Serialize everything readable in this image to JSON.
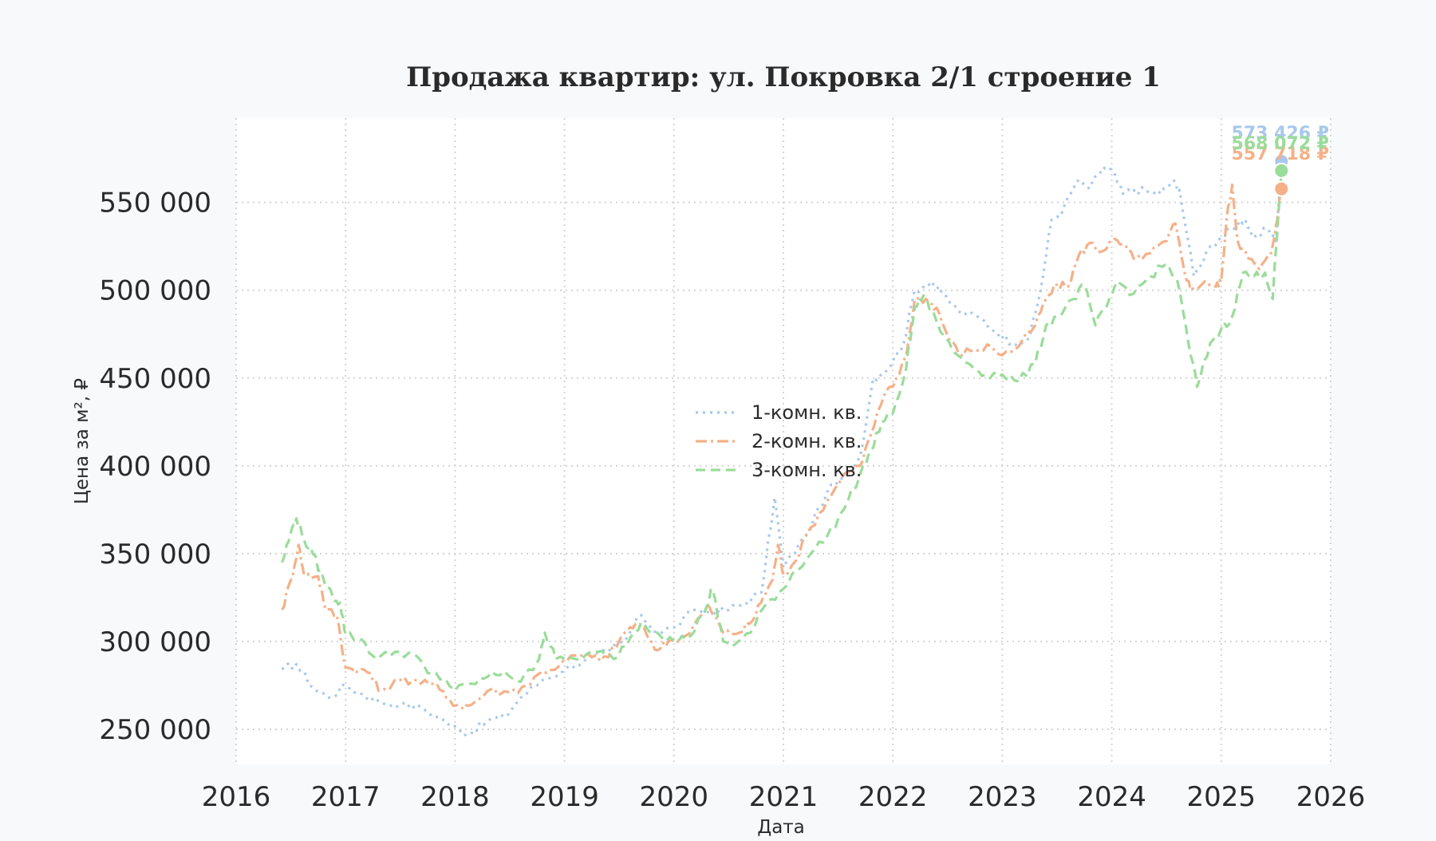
{
  "chart_data": {
    "type": "line",
    "title": "Продажа квартир: ул. Покровка 2/1 строение 1",
    "xlabel": "Дата",
    "ylabel": "Цена за м², ₽",
    "xlim": [
      2016,
      2026
    ],
    "ylim": [
      230000,
      598000
    ],
    "x_ticks": [
      "2016",
      "2017",
      "2018",
      "2019",
      "2020",
      "2021",
      "2022",
      "2023",
      "2024",
      "2025",
      "2026"
    ],
    "y_ticks": [
      250000,
      300000,
      350000,
      400000,
      450000,
      500000,
      550000
    ],
    "y_tick_labels": [
      "250 000",
      "300 000",
      "350 000",
      "400 000",
      "450 000",
      "500 000",
      "550 000"
    ],
    "grid": true,
    "legend_position": "center",
    "series": [
      {
        "name": "1-комн. кв.",
        "color": "#a8c8ec",
        "style": "dotted",
        "end_label": "573 426 ₽",
        "end_value": 573426,
        "points": [
          [
            2016.42,
            284000
          ],
          [
            2016.55,
            287000
          ],
          [
            2016.7,
            274000
          ],
          [
            2016.85,
            268000
          ],
          [
            2017.0,
            275000
          ],
          [
            2017.15,
            270000
          ],
          [
            2017.3,
            266000
          ],
          [
            2017.5,
            264000
          ],
          [
            2017.7,
            262000
          ],
          [
            2017.9,
            255000
          ],
          [
            2018.05,
            249000
          ],
          [
            2018.15,
            248000
          ],
          [
            2018.3,
            255000
          ],
          [
            2018.45,
            257000
          ],
          [
            2018.6,
            268000
          ],
          [
            2018.8,
            278000
          ],
          [
            2019.0,
            284000
          ],
          [
            2019.2,
            290000
          ],
          [
            2019.4,
            294000
          ],
          [
            2019.55,
            300000
          ],
          [
            2019.7,
            315000
          ],
          [
            2019.85,
            305000
          ],
          [
            2020.0,
            308000
          ],
          [
            2020.2,
            318000
          ],
          [
            2020.35,
            317000
          ],
          [
            2020.5,
            318000
          ],
          [
            2020.65,
            322000
          ],
          [
            2020.8,
            328000
          ],
          [
            2020.92,
            382000
          ],
          [
            2021.0,
            342000
          ],
          [
            2021.2,
            360000
          ],
          [
            2021.4,
            385000
          ],
          [
            2021.55,
            393000
          ],
          [
            2021.7,
            405000
          ],
          [
            2021.82,
            450000
          ],
          [
            2021.95,
            455000
          ],
          [
            2022.1,
            470000
          ],
          [
            2022.2,
            500000
          ],
          [
            2022.35,
            505000
          ],
          [
            2022.45,
            498000
          ],
          [
            2022.6,
            488000
          ],
          [
            2022.8,
            484000
          ],
          [
            2022.95,
            476000
          ],
          [
            2023.1,
            470000
          ],
          [
            2023.25,
            473000
          ],
          [
            2023.35,
            500000
          ],
          [
            2023.45,
            540000
          ],
          [
            2023.55,
            545000
          ],
          [
            2023.68,
            562000
          ],
          [
            2023.8,
            558000
          ],
          [
            2023.92,
            570000
          ],
          [
            2024.0,
            568000
          ],
          [
            2024.1,
            555000
          ],
          [
            2024.2,
            557000
          ],
          [
            2024.35,
            556000
          ],
          [
            2024.45,
            555000
          ],
          [
            2024.55,
            562000
          ],
          [
            2024.62,
            557000
          ],
          [
            2024.75,
            508000
          ],
          [
            2024.9,
            525000
          ],
          [
            2025.0,
            530000
          ],
          [
            2025.12,
            535000
          ],
          [
            2025.22,
            540000
          ],
          [
            2025.3,
            530000
          ],
          [
            2025.42,
            535000
          ],
          [
            2025.5,
            528000
          ],
          [
            2025.55,
            573426
          ]
        ]
      },
      {
        "name": "2-комн. кв.",
        "color": "#f5b088",
        "style": "dashdot",
        "end_label": "557 718 ₽",
        "end_value": 557718,
        "points": [
          [
            2016.42,
            318000
          ],
          [
            2016.5,
            335000
          ],
          [
            2016.57,
            355000
          ],
          [
            2016.62,
            338000
          ],
          [
            2016.75,
            337000
          ],
          [
            2016.82,
            318000
          ],
          [
            2016.92,
            315000
          ],
          [
            2017.0,
            285000
          ],
          [
            2017.12,
            284000
          ],
          [
            2017.22,
            282000
          ],
          [
            2017.3,
            272000
          ],
          [
            2017.5,
            278000
          ],
          [
            2017.65,
            278000
          ],
          [
            2017.8,
            276000
          ],
          [
            2017.92,
            268000
          ],
          [
            2018.05,
            263000
          ],
          [
            2018.15,
            264000
          ],
          [
            2018.3,
            272000
          ],
          [
            2018.5,
            271000
          ],
          [
            2018.65,
            275000
          ],
          [
            2018.8,
            283000
          ],
          [
            2018.95,
            286000
          ],
          [
            2019.1,
            292000
          ],
          [
            2019.25,
            291000
          ],
          [
            2019.4,
            291000
          ],
          [
            2019.55,
            305000
          ],
          [
            2019.65,
            310000
          ],
          [
            2019.75,
            304000
          ],
          [
            2019.85,
            295000
          ],
          [
            2019.95,
            300000
          ],
          [
            2020.1,
            303000
          ],
          [
            2020.25,
            315000
          ],
          [
            2020.32,
            320000
          ],
          [
            2020.45,
            305000
          ],
          [
            2020.6,
            305000
          ],
          [
            2020.72,
            312000
          ],
          [
            2020.82,
            326000
          ],
          [
            2020.9,
            335000
          ],
          [
            2020.95,
            355000
          ],
          [
            2021.0,
            338000
          ],
          [
            2021.1,
            345000
          ],
          [
            2021.25,
            365000
          ],
          [
            2021.4,
            380000
          ],
          [
            2021.55,
            395000
          ],
          [
            2021.7,
            400000
          ],
          [
            2021.8,
            418000
          ],
          [
            2021.92,
            440000
          ],
          [
            2022.0,
            445000
          ],
          [
            2022.12,
            462000
          ],
          [
            2022.2,
            495000
          ],
          [
            2022.3,
            495000
          ],
          [
            2022.4,
            490000
          ],
          [
            2022.5,
            474000
          ],
          [
            2022.6,
            464000
          ],
          [
            2022.75,
            466000
          ],
          [
            2022.9,
            468000
          ],
          [
            2023.0,
            463000
          ],
          [
            2023.15,
            468000
          ],
          [
            2023.3,
            480000
          ],
          [
            2023.4,
            495000
          ],
          [
            2023.5,
            503000
          ],
          [
            2023.6,
            502000
          ],
          [
            2023.7,
            520000
          ],
          [
            2023.8,
            527000
          ],
          [
            2023.9,
            522000
          ],
          [
            2024.0,
            528000
          ],
          [
            2024.1,
            526000
          ],
          [
            2024.2,
            518000
          ],
          [
            2024.35,
            521000
          ],
          [
            2024.5,
            528000
          ],
          [
            2024.58,
            538000
          ],
          [
            2024.65,
            515000
          ],
          [
            2024.72,
            500000
          ],
          [
            2024.85,
            505000
          ],
          [
            2024.95,
            502000
          ],
          [
            2025.0,
            505000
          ],
          [
            2025.05,
            541000
          ],
          [
            2025.1,
            560000
          ],
          [
            2025.15,
            528000
          ],
          [
            2025.25,
            518000
          ],
          [
            2025.35,
            512000
          ],
          [
            2025.45,
            520000
          ],
          [
            2025.5,
            537000
          ],
          [
            2025.55,
            557718
          ]
        ]
      },
      {
        "name": "3-комн. кв.",
        "color": "#9adc9a",
        "style": "dashed",
        "end_label": "568 072 ₽",
        "end_value": 568072,
        "points": [
          [
            2016.42,
            345000
          ],
          [
            2016.5,
            362000
          ],
          [
            2016.55,
            370000
          ],
          [
            2016.62,
            358000
          ],
          [
            2016.7,
            350000
          ],
          [
            2016.8,
            335000
          ],
          [
            2016.88,
            326000
          ],
          [
            2016.95,
            322000
          ],
          [
            2017.0,
            304000
          ],
          [
            2017.15,
            301000
          ],
          [
            2017.28,
            290000
          ],
          [
            2017.45,
            294000
          ],
          [
            2017.62,
            293000
          ],
          [
            2017.75,
            282000
          ],
          [
            2017.9,
            279000
          ],
          [
            2018.0,
            272000
          ],
          [
            2018.15,
            276000
          ],
          [
            2018.3,
            280000
          ],
          [
            2018.45,
            283000
          ],
          [
            2018.6,
            277000
          ],
          [
            2018.75,
            288000
          ],
          [
            2018.82,
            305000
          ],
          [
            2018.92,
            290000
          ],
          [
            2019.1,
            290000
          ],
          [
            2019.3,
            294000
          ],
          [
            2019.45,
            290000
          ],
          [
            2019.6,
            302000
          ],
          [
            2019.7,
            311000
          ],
          [
            2019.85,
            305000
          ],
          [
            2020.0,
            300000
          ],
          [
            2020.15,
            303000
          ],
          [
            2020.3,
            320000
          ],
          [
            2020.35,
            330000
          ],
          [
            2020.45,
            300000
          ],
          [
            2020.55,
            298000
          ],
          [
            2020.7,
            305000
          ],
          [
            2020.85,
            322000
          ],
          [
            2021.0,
            330000
          ],
          [
            2021.1,
            340000
          ],
          [
            2021.25,
            350000
          ],
          [
            2021.4,
            360000
          ],
          [
            2021.55,
            375000
          ],
          [
            2021.7,
            395000
          ],
          [
            2021.8,
            408000
          ],
          [
            2021.9,
            425000
          ],
          [
            2022.0,
            430000
          ],
          [
            2022.12,
            455000
          ],
          [
            2022.2,
            490000
          ],
          [
            2022.28,
            497000
          ],
          [
            2022.4,
            482000
          ],
          [
            2022.55,
            465000
          ],
          [
            2022.7,
            458000
          ],
          [
            2022.85,
            452000
          ],
          [
            2023.0,
            452000
          ],
          [
            2023.15,
            448000
          ],
          [
            2023.3,
            458000
          ],
          [
            2023.4,
            480000
          ],
          [
            2023.5,
            485000
          ],
          [
            2023.65,
            495000
          ],
          [
            2023.75,
            503000
          ],
          [
            2023.85,
            480000
          ],
          [
            2023.95,
            490000
          ],
          [
            2024.05,
            505000
          ],
          [
            2024.2,
            498000
          ],
          [
            2024.35,
            508000
          ],
          [
            2024.5,
            515000
          ],
          [
            2024.6,
            505000
          ],
          [
            2024.7,
            470000
          ],
          [
            2024.78,
            445000
          ],
          [
            2024.9,
            470000
          ],
          [
            2025.0,
            478000
          ],
          [
            2025.1,
            485000
          ],
          [
            2025.2,
            510000
          ],
          [
            2025.3,
            508000
          ],
          [
            2025.4,
            510000
          ],
          [
            2025.47,
            495000
          ],
          [
            2025.55,
            568072
          ]
        ]
      }
    ]
  }
}
